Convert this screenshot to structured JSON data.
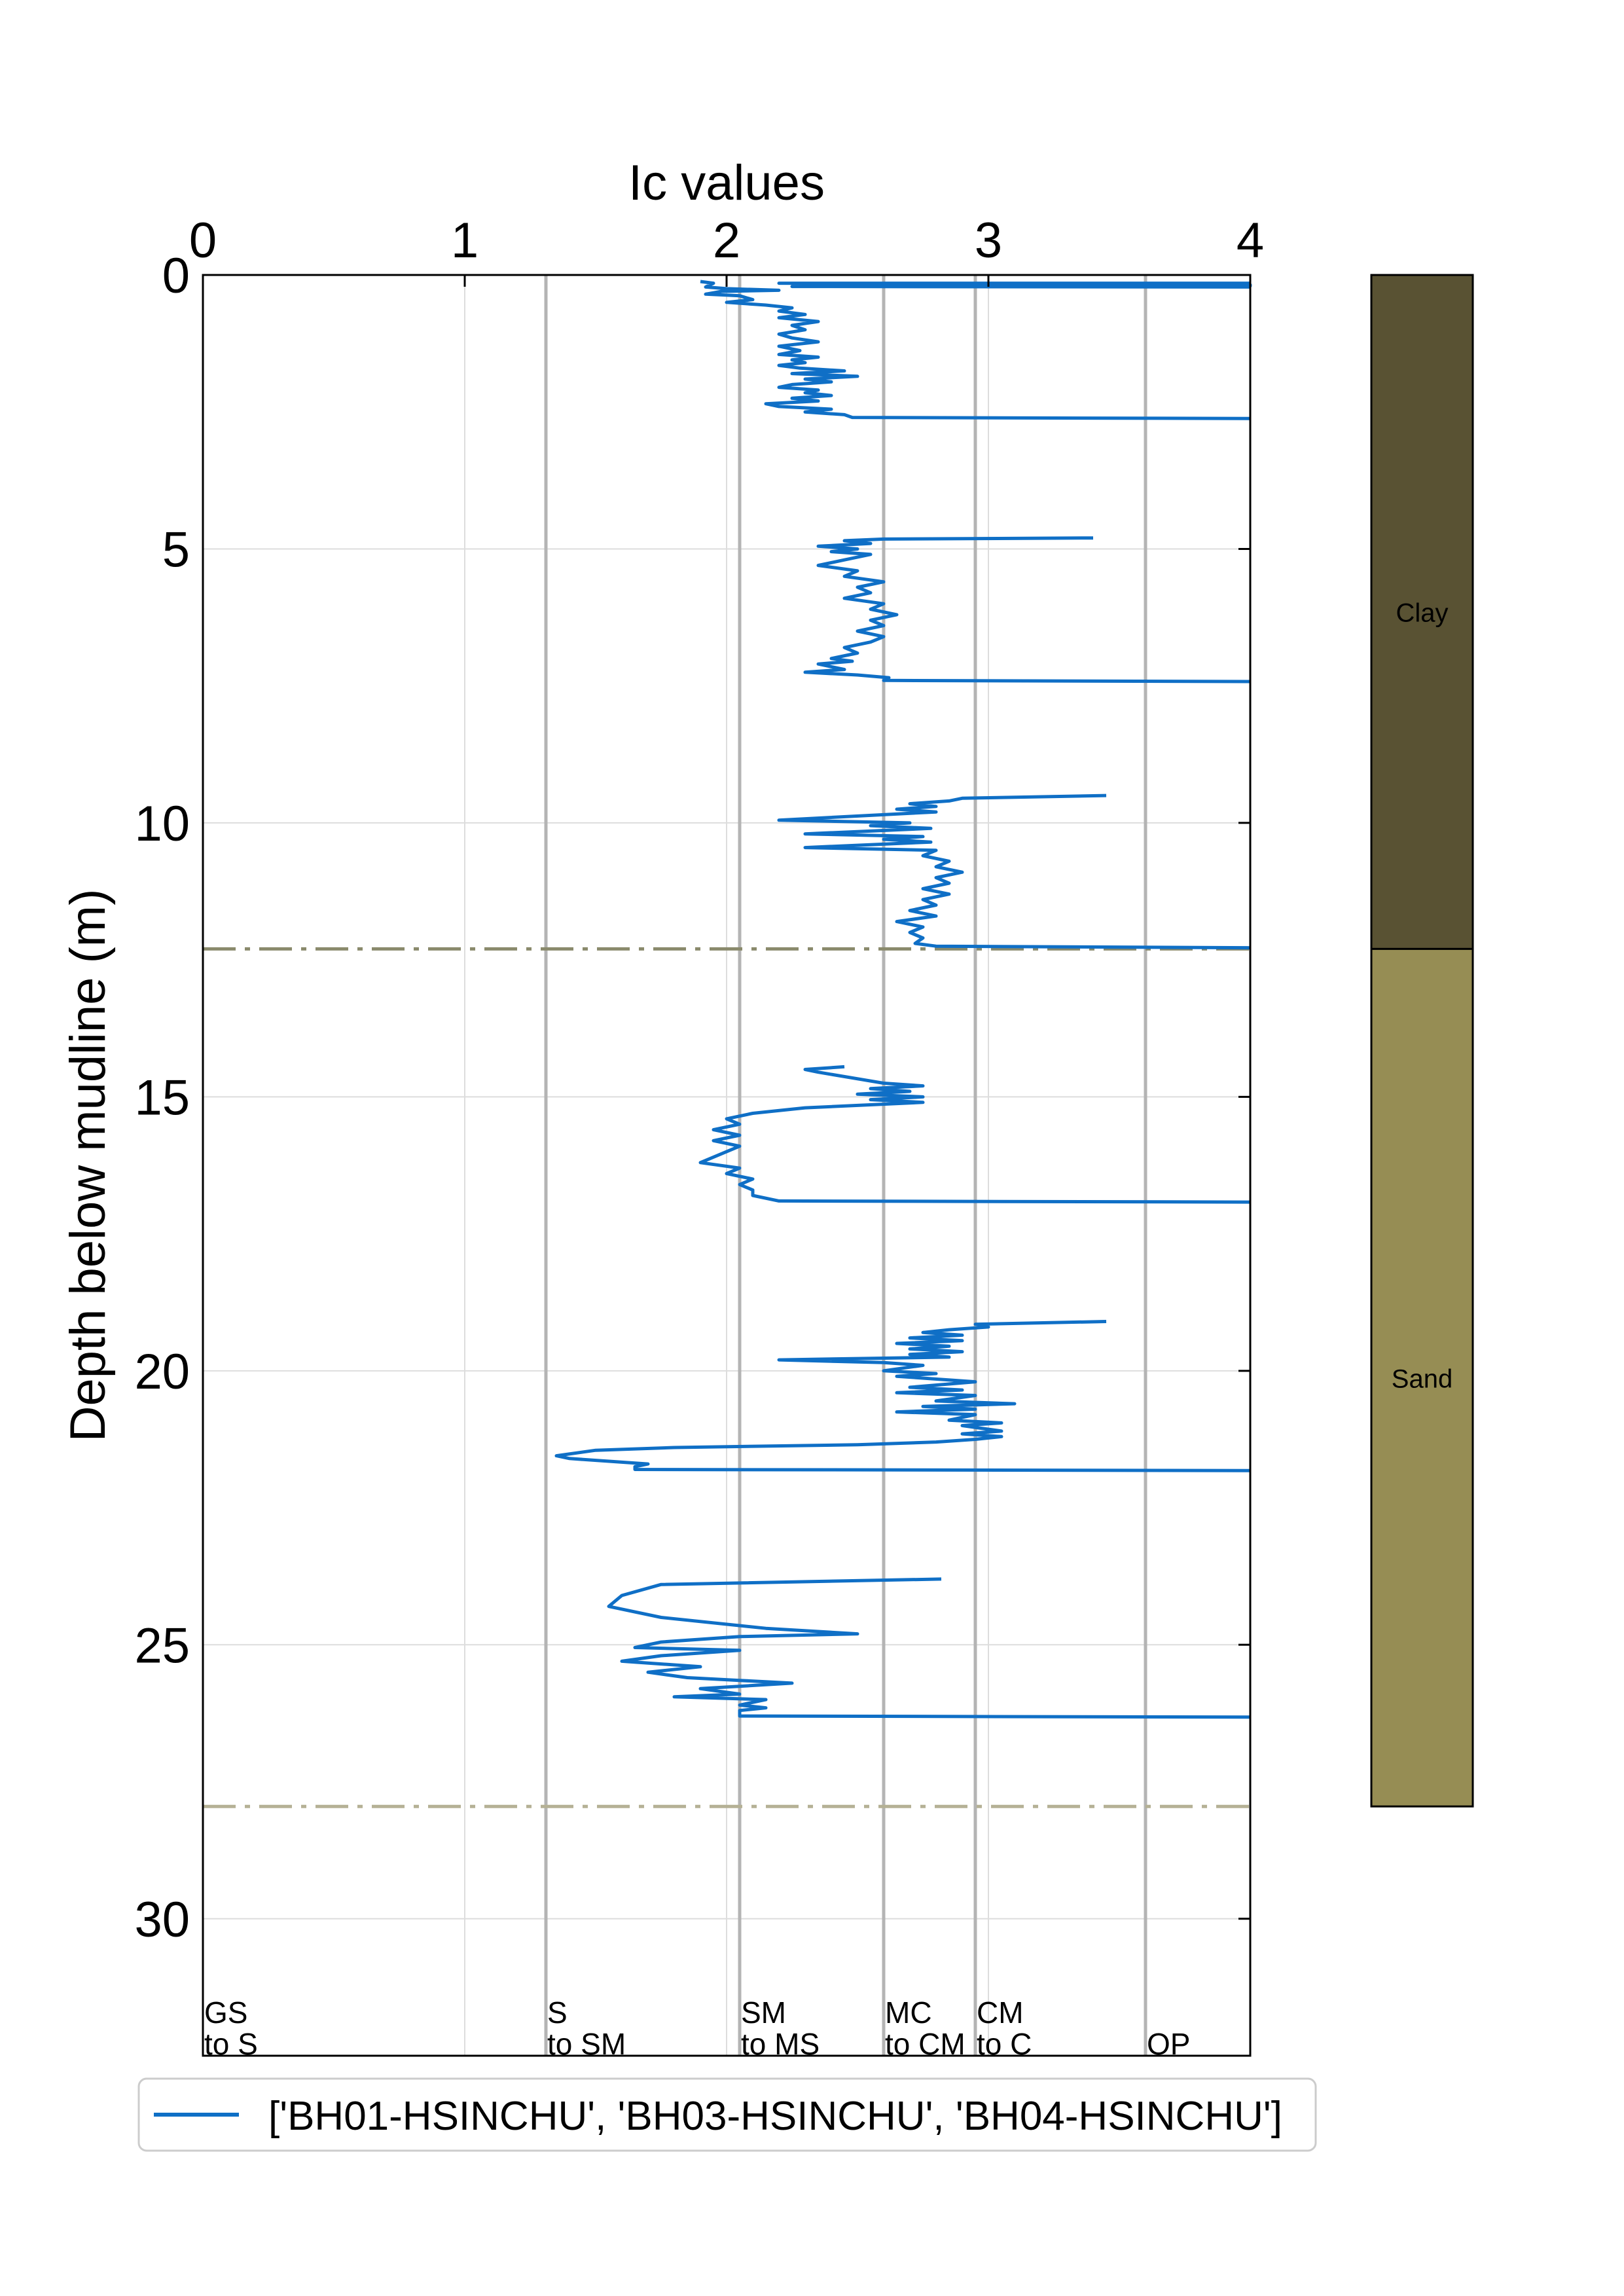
{
  "chart_data": {
    "type": "line",
    "xlabel": "Ic values",
    "ylabel": "Depth below mudline (m)",
    "xlim": [
      0,
      4
    ],
    "ylim": [
      32.5,
      0
    ],
    "x_axis_position": "top",
    "grid": true,
    "xticks": [
      {
        "value": 0,
        "label": "0"
      },
      {
        "value": 1,
        "label": "1"
      },
      {
        "value": 2,
        "label": "2"
      },
      {
        "value": 3,
        "label": "3"
      },
      {
        "value": 4,
        "label": "4"
      }
    ],
    "yticks": [
      {
        "value": 0,
        "label": "0"
      },
      {
        "value": 5,
        "label": "5"
      },
      {
        "value": 10,
        "label": "10"
      },
      {
        "value": 15,
        "label": "15"
      },
      {
        "value": 20,
        "label": "20"
      },
      {
        "value": 25,
        "label": "25"
      },
      {
        "value": 30,
        "label": "30"
      }
    ],
    "zone_boundaries": [
      {
        "x": 0.0,
        "label_line1": "GS",
        "label_line2": "to S"
      },
      {
        "x": 1.31,
        "label_line1": "S",
        "label_line2": "to SM"
      },
      {
        "x": 2.05,
        "label_line1": "SM",
        "label_line2": "to MS"
      },
      {
        "x": 2.6,
        "label_line1": "MC",
        "label_line2": "to CM"
      },
      {
        "x": 2.95,
        "label_line1": "CM",
        "label_line2": "to C"
      },
      {
        "x": 3.6,
        "label_line1": "",
        "label_line2": "OP"
      }
    ],
    "layer_lines": [
      {
        "depth": 12.3,
        "color": "#8a8a6c"
      },
      {
        "depth": 27.95,
        "color": "#b5b195"
      }
    ],
    "soil_column": [
      {
        "name": "Clay",
        "top": 0,
        "bottom": 12.3,
        "color": "#595233"
      },
      {
        "name": "Sand",
        "top": 12.3,
        "bottom": 27.95,
        "color": "#968d54"
      }
    ],
    "legend": {
      "position": "bottom",
      "label": "['BH01-HSINCHU', 'BH03-HSINCHU', 'BH04-HSINCHU']"
    },
    "series": [
      {
        "color": "#0f6fc6",
        "segments": [
          [
            [
              1.9,
              0.12
            ],
            [
              1.95,
              0.15
            ],
            [
              1.92,
              0.22
            ],
            [
              2.0,
              0.25
            ],
            [
              2.2,
              0.28
            ],
            [
              1.98,
              0.3
            ],
            [
              1.92,
              0.35
            ],
            [
              2.05,
              0.38
            ],
            [
              2.1,
              0.45
            ],
            [
              2.0,
              0.5
            ],
            [
              2.15,
              0.55
            ],
            [
              2.25,
              0.6
            ],
            [
              2.2,
              0.66
            ],
            [
              2.3,
              0.72
            ],
            [
              2.2,
              0.78
            ],
            [
              2.35,
              0.85
            ],
            [
              2.25,
              0.92
            ],
            [
              2.3,
              1.0
            ],
            [
              2.2,
              1.08
            ],
            [
              2.25,
              1.15
            ],
            [
              2.35,
              1.22
            ],
            [
              2.2,
              1.3
            ],
            [
              2.28,
              1.38
            ],
            [
              2.2,
              1.45
            ],
            [
              2.35,
              1.5
            ],
            [
              2.25,
              1.55
            ],
            [
              2.3,
              1.6
            ],
            [
              2.2,
              1.65
            ],
            [
              2.28,
              1.7
            ],
            [
              2.45,
              1.75
            ],
            [
              2.25,
              1.8
            ],
            [
              2.5,
              1.85
            ],
            [
              2.3,
              1.9
            ],
            [
              2.4,
              1.95
            ],
            [
              2.25,
              2.0
            ],
            [
              2.2,
              2.05
            ],
            [
              2.35,
              2.1
            ],
            [
              2.3,
              2.15
            ],
            [
              2.4,
              2.2
            ],
            [
              2.25,
              2.25
            ],
            [
              2.35,
              2.3
            ],
            [
              2.15,
              2.35
            ],
            [
              2.2,
              2.4
            ],
            [
              2.4,
              2.45
            ],
            [
              2.3,
              2.5
            ],
            [
              2.45,
              2.55
            ],
            [
              2.48,
              2.6
            ],
            [
              4.0,
              2.62
            ]
          ],
          [
            [
              4.0,
              0.15
            ],
            [
              2.2,
              0.15
            ],
            [
              4.0,
              0.18
            ],
            [
              2.3,
              0.18
            ],
            [
              4.0,
              0.2
            ],
            [
              2.25,
              0.21
            ],
            [
              4.0,
              0.22
            ]
          ],
          [
            [
              3.4,
              4.8
            ],
            [
              2.6,
              4.82
            ],
            [
              2.45,
              4.85
            ],
            [
              2.55,
              4.9
            ],
            [
              2.35,
              4.95
            ],
            [
              2.5,
              5.0
            ],
            [
              2.4,
              5.05
            ],
            [
              2.55,
              5.1
            ],
            [
              2.45,
              5.2
            ],
            [
              2.35,
              5.3
            ],
            [
              2.5,
              5.4
            ],
            [
              2.45,
              5.5
            ],
            [
              2.6,
              5.6
            ],
            [
              2.5,
              5.7
            ],
            [
              2.55,
              5.8
            ],
            [
              2.45,
              5.9
            ],
            [
              2.6,
              6.0
            ],
            [
              2.55,
              6.1
            ],
            [
              2.65,
              6.2
            ],
            [
              2.55,
              6.3
            ],
            [
              2.6,
              6.4
            ],
            [
              2.5,
              6.5
            ],
            [
              2.6,
              6.6
            ],
            [
              2.55,
              6.7
            ],
            [
              2.45,
              6.8
            ],
            [
              2.5,
              6.9
            ],
            [
              2.4,
              7.0
            ],
            [
              2.48,
              7.05
            ],
            [
              2.35,
              7.1
            ],
            [
              2.45,
              7.2
            ],
            [
              2.3,
              7.25
            ],
            [
              2.5,
              7.3
            ],
            [
              2.62,
              7.35
            ],
            [
              2.6,
              7.4
            ],
            [
              4.0,
              7.42
            ]
          ],
          [
            [
              3.45,
              9.5
            ],
            [
              2.9,
              9.55
            ],
            [
              2.85,
              9.6
            ],
            [
              2.7,
              9.65
            ],
            [
              2.8,
              9.7
            ],
            [
              2.65,
              9.75
            ],
            [
              2.8,
              9.8
            ],
            [
              2.2,
              9.95
            ],
            [
              2.7,
              10.0
            ],
            [
              2.55,
              10.05
            ],
            [
              2.78,
              10.1
            ],
            [
              2.3,
              10.2
            ],
            [
              2.75,
              10.25
            ],
            [
              2.6,
              10.3
            ],
            [
              2.78,
              10.35
            ],
            [
              2.3,
              10.45
            ],
            [
              2.8,
              10.5
            ],
            [
              2.75,
              10.6
            ],
            [
              2.85,
              10.7
            ],
            [
              2.8,
              10.8
            ],
            [
              2.9,
              10.9
            ],
            [
              2.8,
              11.0
            ],
            [
              2.85,
              11.1
            ],
            [
              2.75,
              11.2
            ],
            [
              2.85,
              11.3
            ],
            [
              2.75,
              11.4
            ],
            [
              2.8,
              11.5
            ],
            [
              2.7,
              11.6
            ],
            [
              2.8,
              11.7
            ],
            [
              2.65,
              11.8
            ],
            [
              2.75,
              11.9
            ],
            [
              2.7,
              12.0
            ],
            [
              2.75,
              12.1
            ],
            [
              2.72,
              12.2
            ],
            [
              2.8,
              12.25
            ],
            [
              4.0,
              12.28
            ]
          ],
          [
            [
              2.45,
              14.45
            ],
            [
              2.3,
              14.5
            ],
            [
              2.35,
              14.55
            ],
            [
              2.6,
              14.75
            ],
            [
              2.75,
              14.8
            ],
            [
              2.55,
              14.85
            ],
            [
              2.7,
              14.9
            ],
            [
              2.5,
              14.95
            ],
            [
              2.75,
              15.0
            ],
            [
              2.55,
              15.05
            ],
            [
              2.75,
              15.1
            ],
            [
              2.3,
              15.2
            ],
            [
              2.1,
              15.3
            ],
            [
              2.0,
              15.4
            ],
            [
              2.05,
              15.5
            ],
            [
              1.95,
              15.6
            ],
            [
              2.05,
              15.7
            ],
            [
              1.95,
              15.8
            ],
            [
              2.05,
              15.9
            ],
            [
              2.0,
              16.0
            ],
            [
              1.95,
              16.1
            ],
            [
              1.9,
              16.2
            ],
            [
              2.05,
              16.3
            ],
            [
              2.0,
              16.4
            ],
            [
              2.1,
              16.5
            ],
            [
              2.05,
              16.6
            ],
            [
              2.1,
              16.7
            ],
            [
              2.1,
              16.8
            ],
            [
              2.2,
              16.9
            ],
            [
              4.0,
              16.92
            ]
          ],
          [
            [
              3.45,
              19.1
            ],
            [
              2.95,
              19.15
            ],
            [
              3.0,
              19.2
            ],
            [
              2.85,
              19.25
            ],
            [
              2.75,
              19.3
            ],
            [
              2.9,
              19.35
            ],
            [
              2.7,
              19.4
            ],
            [
              2.9,
              19.45
            ],
            [
              2.65,
              19.5
            ],
            [
              2.85,
              19.55
            ],
            [
              2.7,
              19.6
            ],
            [
              2.9,
              19.65
            ],
            [
              2.7,
              19.7
            ],
            [
              2.85,
              19.75
            ],
            [
              2.2,
              19.8
            ],
            [
              2.6,
              19.85
            ],
            [
              2.75,
              19.9
            ],
            [
              2.6,
              20.0
            ],
            [
              2.8,
              20.05
            ],
            [
              2.65,
              20.1
            ],
            [
              2.95,
              20.2
            ],
            [
              2.7,
              20.3
            ],
            [
              2.9,
              20.35
            ],
            [
              2.65,
              20.4
            ],
            [
              2.95,
              20.45
            ],
            [
              2.8,
              20.55
            ],
            [
              3.1,
              20.6
            ],
            [
              2.75,
              20.65
            ],
            [
              2.95,
              20.7
            ],
            [
              2.65,
              20.75
            ],
            [
              2.95,
              20.8
            ],
            [
              2.85,
              20.9
            ],
            [
              3.05,
              20.95
            ],
            [
              2.9,
              21.0
            ],
            [
              3.05,
              21.1
            ],
            [
              2.9,
              21.15
            ],
            [
              3.05,
              21.2
            ],
            [
              2.95,
              21.25
            ],
            [
              2.8,
              21.3
            ],
            [
              2.5,
              21.35
            ],
            [
              1.8,
              21.4
            ],
            [
              1.5,
              21.45
            ],
            [
              1.35,
              21.55
            ],
            [
              1.4,
              21.6
            ],
            [
              1.7,
              21.7
            ],
            [
              1.65,
              21.75
            ],
            [
              1.65,
              21.8
            ],
            [
              4.0,
              21.82
            ]
          ],
          [
            [
              2.82,
              23.8
            ],
            [
              1.75,
              23.9
            ],
            [
              1.6,
              24.1
            ],
            [
              1.55,
              24.3
            ],
            [
              1.75,
              24.5
            ],
            [
              2.15,
              24.7
            ],
            [
              2.5,
              24.8
            ],
            [
              2.05,
              24.85
            ],
            [
              1.75,
              24.95
            ],
            [
              1.65,
              25.05
            ],
            [
              2.05,
              25.1
            ],
            [
              1.75,
              25.2
            ],
            [
              1.6,
              25.3
            ],
            [
              1.9,
              25.4
            ],
            [
              1.7,
              25.5
            ],
            [
              1.85,
              25.6
            ],
            [
              2.05,
              25.65
            ],
            [
              2.25,
              25.7
            ],
            [
              1.9,
              25.8
            ],
            [
              2.05,
              25.9
            ],
            [
              1.8,
              25.95
            ],
            [
              2.15,
              26.0
            ],
            [
              2.05,
              26.1
            ],
            [
              2.15,
              26.15
            ],
            [
              2.05,
              26.2
            ],
            [
              2.05,
              26.3
            ],
            [
              4.0,
              26.32
            ]
          ]
        ]
      }
    ]
  }
}
